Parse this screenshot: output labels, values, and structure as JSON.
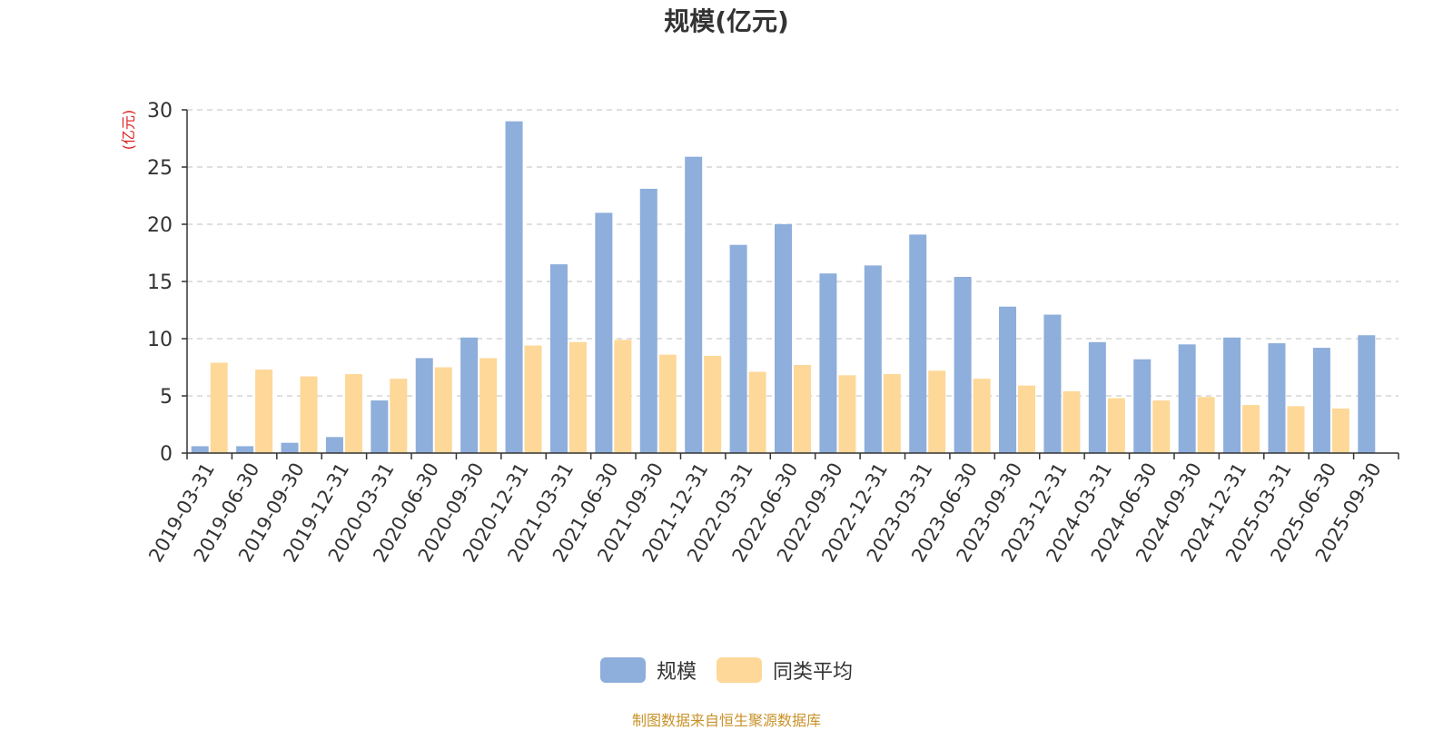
{
  "chart_data": {
    "type": "bar",
    "title": "规模(亿元)",
    "ylabel": "(亿元)",
    "xlabel": "",
    "ylim": [
      0,
      30
    ],
    "yticks": [
      0,
      5,
      10,
      15,
      20,
      25,
      30
    ],
    "grid": true,
    "legend_position": "bottom",
    "categories": [
      "2019-03-31",
      "2019-06-30",
      "2019-09-30",
      "2019-12-31",
      "2020-03-31",
      "2020-06-30",
      "2020-09-30",
      "2020-12-31",
      "2021-03-31",
      "2021-06-30",
      "2021-09-30",
      "2021-12-31",
      "2022-03-31",
      "2022-06-30",
      "2022-09-30",
      "2022-12-31",
      "2023-03-31",
      "2023-06-30",
      "2023-09-30",
      "2023-12-31",
      "2024-03-31",
      "2024-06-30",
      "2024-09-30",
      "2024-12-31",
      "2025-03-31",
      "2025-06-30",
      "2025-09-30"
    ],
    "series": [
      {
        "name": "规模",
        "color": "#8eaedb",
        "values": [
          0.6,
          0.6,
          0.9,
          1.4,
          4.6,
          8.3,
          10.1,
          29.0,
          16.5,
          21.0,
          23.1,
          25.9,
          18.2,
          20.0,
          15.7,
          16.4,
          19.1,
          15.4,
          12.8,
          12.1,
          9.7,
          8.2,
          9.5,
          10.1,
          9.6,
          9.2,
          10.3
        ]
      },
      {
        "name": "同类平均",
        "color": "#fdd898",
        "values": [
          7.9,
          7.3,
          6.7,
          6.9,
          6.5,
          7.5,
          8.3,
          9.4,
          9.7,
          9.9,
          8.6,
          8.5,
          7.1,
          7.7,
          6.8,
          6.9,
          7.2,
          6.5,
          5.9,
          5.4,
          4.8,
          4.6,
          4.9,
          4.2,
          4.1,
          3.9,
          null
        ]
      }
    ]
  },
  "source_note": "制图数据来自恒生聚源数据库",
  "colors": {
    "axis_label": "#e02020",
    "text": "#333333",
    "grid": "#cccccc",
    "source": "#c8922a"
  }
}
